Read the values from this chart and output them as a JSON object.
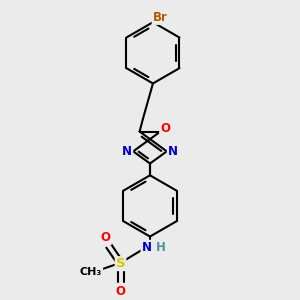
{
  "bg_color": "#ebebeb",
  "bond_color": "#000000",
  "bond_width": 1.5,
  "atom_colors": {
    "Br": "#b05a00",
    "O": "#ff0000",
    "N": "#0000cc",
    "S": "#cccc00",
    "H": "#5090a0",
    "C": "#000000"
  },
  "font_size": 8.5,
  "fig_size": [
    3.0,
    3.0
  ],
  "dpi": 100
}
